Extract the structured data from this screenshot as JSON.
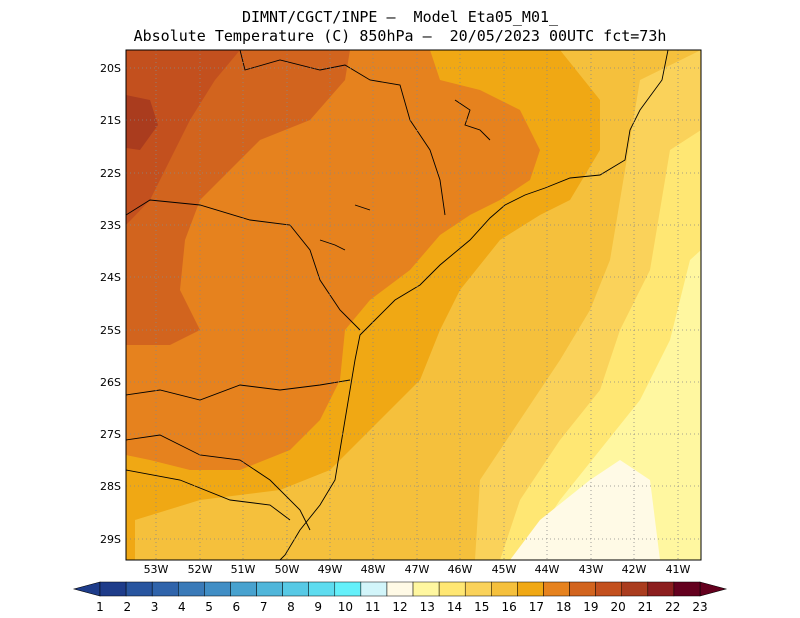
{
  "header": {
    "line1": "DIMNT/CGCT/INPE –  Model Eta05_M01_",
    "line2": "Absolute Temperature (C) 850hPa –  20/05/2023 00UTC fct=73h"
  },
  "axes": {
    "lat_labels": [
      "20S",
      "21S",
      "22S",
      "23S",
      "24S",
      "25S",
      "26S",
      "27S",
      "28S",
      "29S"
    ],
    "lon_labels": [
      "53W",
      "52W",
      "51W",
      "50W",
      "49W",
      "48W",
      "47W",
      "46W",
      "45W",
      "44W",
      "43W",
      "42W",
      "41W"
    ]
  },
  "colorbar": {
    "labels": [
      "1",
      "2",
      "3",
      "4",
      "5",
      "6",
      "7",
      "8",
      "9",
      "10",
      "11",
      "12",
      "13",
      "14",
      "15",
      "16",
      "17",
      "18",
      "19",
      "20",
      "21",
      "22",
      "23"
    ],
    "colors": [
      "#1e3c8a",
      "#28559f",
      "#3064ab",
      "#3a7ab8",
      "#418ec5",
      "#48a2cf",
      "#50b6da",
      "#57c9e5",
      "#5edcef",
      "#64f0fa",
      "#d2f5fa",
      "#fffae6",
      "#fff7a0",
      "#ffe773",
      "#fad25a",
      "#f5c03c",
      "#f0a814",
      "#e6821e",
      "#d2641e",
      "#c3501e",
      "#aa3c1e",
      "#8c1e1e",
      "#64001e"
    ],
    "underflow_color": "#1e3c8a",
    "overflow_color": "#64001e"
  }
}
